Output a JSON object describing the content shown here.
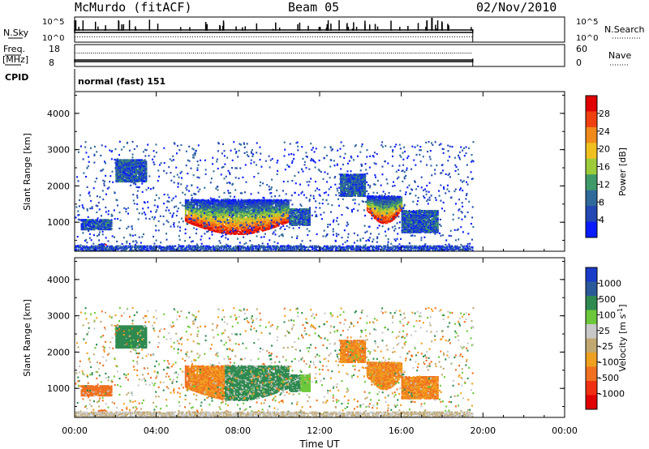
{
  "header": {
    "station": "McMurdo (fitACF)",
    "beam": "Beam 05",
    "date": "02/Nov/2010"
  },
  "top_panels": {
    "nsky_label": "N.Sky",
    "nsky_ticks": [
      "10^5",
      "10^0"
    ],
    "nsearch_label": "N.Search",
    "nsearch_ticks": [
      "10^5",
      "10^0"
    ],
    "freq_label": "Freq.",
    "freq_unit": "[MHz]",
    "freq_ticks": [
      "18",
      "8"
    ],
    "nave_label": "Nave",
    "nave_ticks": [
      "60",
      "0"
    ],
    "cpid_label": "CPID",
    "cpid_value": "normal (fast) 151"
  },
  "colors": {
    "power_scale": [
      "#0a1cff",
      "#2347b3",
      "#2f6a9a",
      "#3f9a6a",
      "#9ccc3a",
      "#f0c020",
      "#f08a1a",
      "#f04010",
      "#e00000"
    ],
    "velocity_scale": [
      "#1a3cc8",
      "#2a5a9a",
      "#2e8a50",
      "#6cc83a",
      "#c8c8c8",
      "#c0a870",
      "#f0a020",
      "#f07020",
      "#f03010",
      "#e00000"
    ]
  },
  "chart_data": [
    {
      "type": "heatmap",
      "panel": "power",
      "ylabel": "Slant Range [km]",
      "xlim": [
        "00:00",
        "24:00"
      ],
      "ylim": [
        200,
        4600
      ],
      "y_ticks": [
        "1000",
        "2000",
        "3000",
        "4000"
      ],
      "colorbar_label": "Power [dB]",
      "colorbar_ticks": [
        "4",
        "8",
        "12",
        "16",
        "20",
        "24",
        "28"
      ],
      "colorbar_range": [
        0,
        30
      ],
      "data_end_hour": 19.5
    },
    {
      "type": "heatmap",
      "panel": "velocity",
      "ylabel": "Slant Range [km]",
      "xlabel": "Time UT",
      "xlim": [
        "00:00",
        "24:00"
      ],
      "ylim": [
        200,
        4600
      ],
      "x_ticks": [
        "00:00",
        "04:00",
        "08:00",
        "12:00",
        "16:00",
        "20:00",
        "00:00"
      ],
      "y_ticks": [
        "1000",
        "2000",
        "3000",
        "4000"
      ],
      "colorbar_label": "Velocity [m s",
      "colorbar_label_sup": "-1",
      "colorbar_label_end": "]",
      "colorbar_ticks": [
        "1000",
        "500",
        "100",
        "25",
        "-25",
        "-100",
        "-500",
        "-1000"
      ],
      "data_end_hour": 19.5
    }
  ]
}
